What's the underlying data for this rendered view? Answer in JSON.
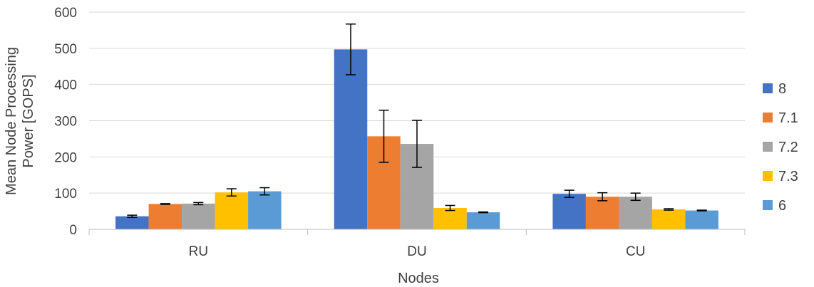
{
  "chart_data": {
    "type": "bar",
    "title": "",
    "xlabel": "Nodes",
    "ylabel_lines": [
      "Mean Node Processing",
      "Power [GOPS]"
    ],
    "categories": [
      "RU",
      "DU",
      "CU"
    ],
    "ylim": [
      0,
      600
    ],
    "yticks": [
      0,
      100,
      200,
      300,
      400,
      500,
      600
    ],
    "grid": true,
    "legend_position": "right",
    "series": [
      {
        "name": "8",
        "color": "#4472C4",
        "values": [
          36,
          497,
          98
        ],
        "errors": [
          3,
          70,
          10
        ]
      },
      {
        "name": "7.1",
        "color": "#ED7D31",
        "values": [
          70,
          257,
          90
        ],
        "errors": [
          1,
          72,
          11
        ]
      },
      {
        "name": "7.2",
        "color": "#A5A5A5",
        "values": [
          71,
          236,
          90
        ],
        "errors": [
          3,
          65,
          10
        ]
      },
      {
        "name": "7.3",
        "color": "#FFC000",
        "values": [
          102,
          59,
          55
        ],
        "errors": [
          10,
          7,
          2
        ]
      },
      {
        "name": "6",
        "color": "#5B9BD5",
        "values": [
          105,
          47,
          52
        ],
        "errors": [
          10,
          1,
          1
        ]
      }
    ]
  }
}
